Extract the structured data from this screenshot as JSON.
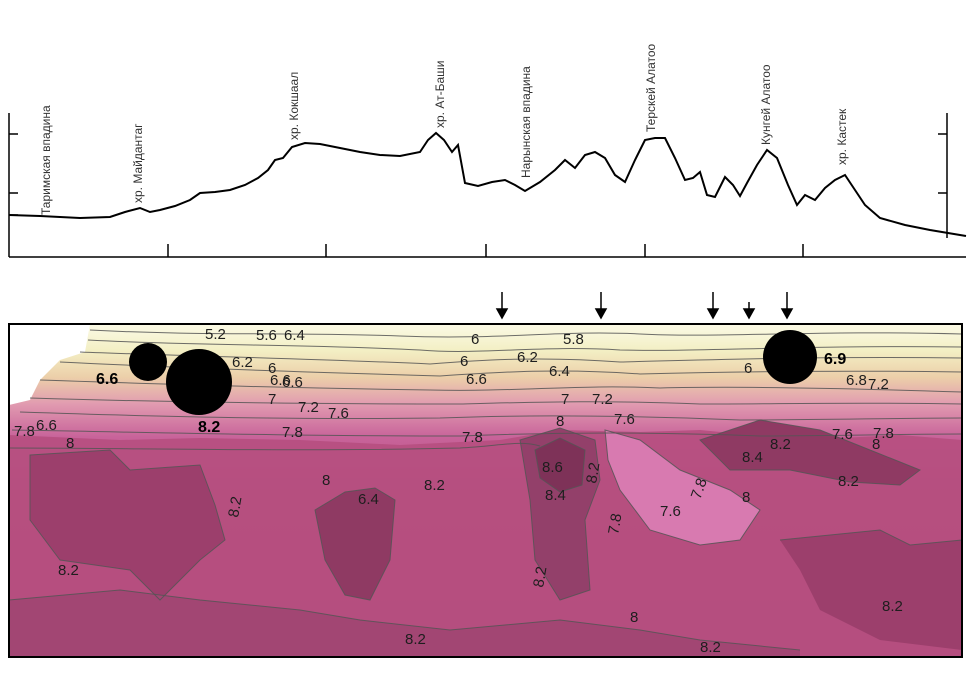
{
  "profile": {
    "place_labels": [
      "Таримская впадина",
      "хр. Майдантаг",
      "хр. Кокшаал",
      "хр. Ат-Баши",
      "Нарынская впадина",
      "Терскей Алатоо",
      "Кунгей Алатоо",
      "хр. Кастек"
    ]
  },
  "section": {
    "contour_labels": [
      "5.2",
      "5.6",
      "6.4",
      "6.2",
      "6.6",
      "6",
      "6.6",
      "7",
      "7.2",
      "7.6",
      "7.8",
      "6.6",
      "8",
      "8.2",
      "7.8",
      "8",
      "8.2",
      "8.2",
      "8.4",
      "8.2",
      "6.4",
      "8.2",
      "6",
      "5.8",
      "6.2",
      "6.6",
      "6.4",
      "7",
      "7.2",
      "7.6",
      "7.8",
      "8",
      "8.6",
      "8.4",
      "8.2",
      "8.2",
      "7.8",
      "7.8",
      "7.6",
      "8",
      "8",
      "8.2",
      "8.4",
      "8.2",
      "7.6",
      "7.8",
      "8.2",
      "6",
      "6.9",
      "6.8",
      "7.2",
      "8",
      "8.2",
      "8.2"
    ],
    "bold_labels": [
      "6.6",
      "8.2",
      "6.9"
    ]
  },
  "colors": {
    "crust_top": "#f3efc4",
    "mantle": "#b8507f",
    "mantle_dark": "#8f3a63",
    "mantle_light": "#d87ab0",
    "event_dot": "#000000"
  },
  "icons": [
    "earthquake-marker-icon",
    "arrow-down-icon"
  ]
}
